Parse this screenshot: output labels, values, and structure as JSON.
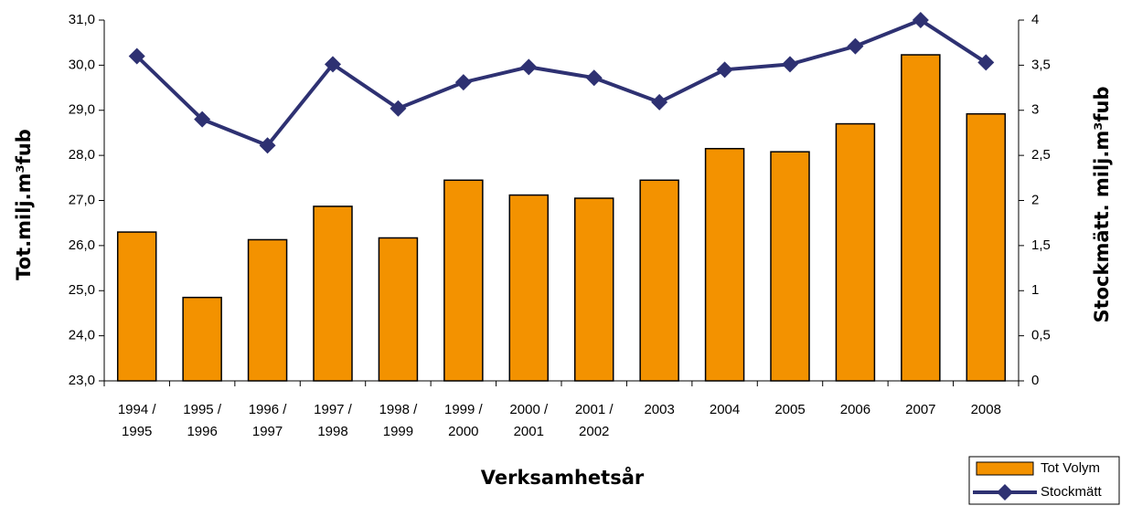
{
  "chart_data": {
    "type": "bar_line",
    "categories": [
      "1994 /\n1995",
      "1995 /\n1996",
      "1996 /\n1997",
      "1997 /\n1998",
      "1998 /\n1999",
      "1999 /\n2000",
      "2000 /\n2001",
      "2001 /\n2002",
      "2003",
      "2004",
      "2005",
      "2006",
      "2007",
      "2008"
    ],
    "series": [
      {
        "name": "Tot Volym",
        "type": "bar",
        "color": "#f39200",
        "values": [
          26.3,
          24.85,
          26.13,
          26.87,
          26.17,
          27.45,
          27.12,
          27.05,
          27.45,
          28.15,
          28.08,
          28.7,
          30.23,
          28.92
        ]
      },
      {
        "name": "Stockmätt",
        "type": "line",
        "axis": "y2",
        "color": "#2e3172",
        "values": [
          3.6,
          2.9,
          2.61,
          3.51,
          3.02,
          3.31,
          3.48,
          3.36,
          3.09,
          3.45,
          3.51,
          3.71,
          4.0,
          3.53
        ]
      }
    ],
    "xlabel": "Verksamhetsår",
    "ylabel": "Tot.milj.m³fub",
    "y2label": "Stockmätt. milj.m³fub",
    "ylim": [
      23,
      31
    ],
    "yticks": [
      {
        "value": 23,
        "label": "23,0"
      },
      {
        "value": 24,
        "label": "24,0"
      },
      {
        "value": 25,
        "label": "25,0"
      },
      {
        "value": 26,
        "label": "26,0"
      },
      {
        "value": 27,
        "label": "27,0"
      },
      {
        "value": 28,
        "label": "28,0"
      },
      {
        "value": 29,
        "label": "29,0"
      },
      {
        "value": 30,
        "label": "30,0"
      },
      {
        "value": 31,
        "label": "31,0"
      }
    ],
    "y2lim": [
      0,
      4
    ],
    "y2ticks": [
      0,
      {
        "value": 0.5,
        "label": "0,5"
      },
      1,
      {
        "value": 1.5,
        "label": "1,5"
      },
      2,
      {
        "value": 2.5,
        "label": "2,5"
      },
      3,
      {
        "value": 3.5,
        "label": "3,5"
      },
      4
    ],
    "grid": false,
    "legend": "lower right"
  }
}
